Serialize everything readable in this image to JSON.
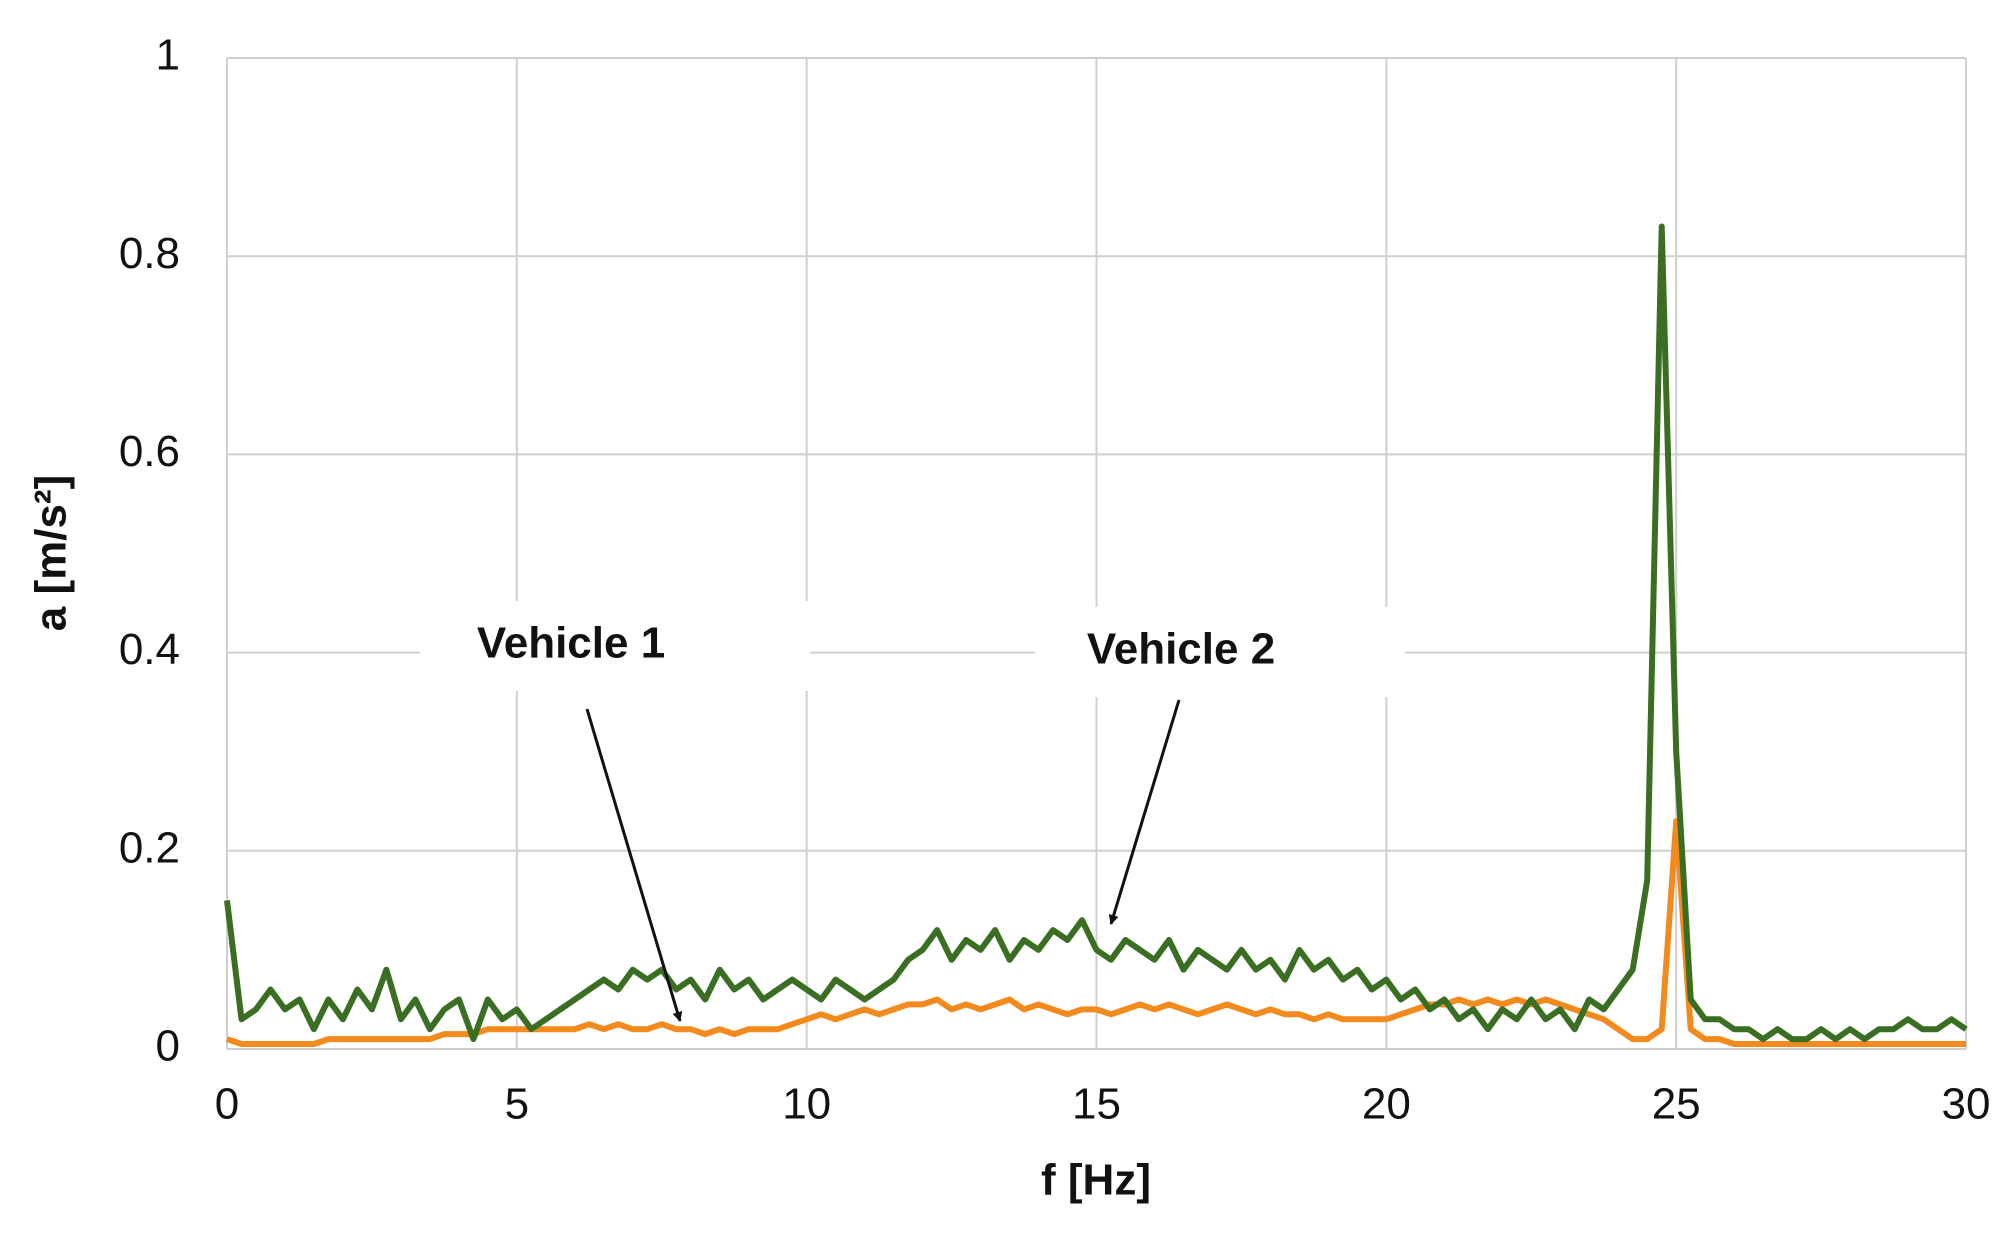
{
  "chart_data": {
    "type": "line",
    "xlabel": "f [Hz]",
    "ylabel": "a [m/s²]",
    "xlim": [
      0,
      30
    ],
    "xticks": [
      0,
      5,
      10,
      15,
      20,
      25,
      30
    ],
    "ylim": [
      0,
      1
    ],
    "yticks": [
      0,
      0.2,
      0.4,
      0.6,
      0.8,
      1
    ],
    "grid": true,
    "x": [
      0,
      0.25,
      0.5,
      0.75,
      1,
      1.25,
      1.5,
      1.75,
      2,
      2.25,
      2.5,
      2.75,
      3,
      3.25,
      3.5,
      3.75,
      4,
      4.25,
      4.5,
      4.75,
      5,
      5.25,
      5.5,
      5.75,
      6,
      6.25,
      6.5,
      6.75,
      7,
      7.25,
      7.5,
      7.75,
      8,
      8.25,
      8.5,
      8.75,
      9,
      9.25,
      9.5,
      9.75,
      10,
      10.25,
      10.5,
      10.75,
      11,
      11.25,
      11.5,
      11.75,
      12,
      12.25,
      12.5,
      12.75,
      13,
      13.25,
      13.5,
      13.75,
      14,
      14.25,
      14.5,
      14.75,
      15,
      15.25,
      15.5,
      15.75,
      16,
      16.25,
      16.5,
      16.75,
      17,
      17.25,
      17.5,
      17.75,
      18,
      18.25,
      18.5,
      18.75,
      19,
      19.25,
      19.5,
      19.75,
      20,
      20.25,
      20.5,
      20.75,
      21,
      21.25,
      21.5,
      21.75,
      22,
      22.25,
      22.5,
      22.75,
      23,
      23.25,
      23.5,
      23.75,
      24,
      24.25,
      24.5,
      24.75,
      25,
      25.25,
      25.5,
      25.75,
      26,
      26.25,
      26.5,
      26.75,
      27,
      27.25,
      27.5,
      27.75,
      28,
      28.25,
      28.5,
      28.75,
      29,
      29.25,
      29.5,
      29.75,
      30
    ],
    "series": [
      {
        "name": "Vehicle 1",
        "color": "#f28a1e",
        "values": [
          0.01,
          0.005,
          0.005,
          0.005,
          0.005,
          0.005,
          0.005,
          0.01,
          0.01,
          0.01,
          0.01,
          0.01,
          0.01,
          0.01,
          0.01,
          0.015,
          0.015,
          0.015,
          0.02,
          0.02,
          0.02,
          0.02,
          0.02,
          0.02,
          0.02,
          0.025,
          0.02,
          0.025,
          0.02,
          0.02,
          0.025,
          0.02,
          0.02,
          0.015,
          0.02,
          0.015,
          0.02,
          0.02,
          0.02,
          0.025,
          0.03,
          0.035,
          0.03,
          0.035,
          0.04,
          0.035,
          0.04,
          0.045,
          0.045,
          0.05,
          0.04,
          0.045,
          0.04,
          0.045,
          0.05,
          0.04,
          0.045,
          0.04,
          0.035,
          0.04,
          0.04,
          0.035,
          0.04,
          0.045,
          0.04,
          0.045,
          0.04,
          0.035,
          0.04,
          0.045,
          0.04,
          0.035,
          0.04,
          0.035,
          0.035,
          0.03,
          0.035,
          0.03,
          0.03,
          0.03,
          0.03,
          0.035,
          0.04,
          0.045,
          0.045,
          0.05,
          0.045,
          0.05,
          0.045,
          0.05,
          0.045,
          0.05,
          0.045,
          0.04,
          0.035,
          0.03,
          0.02,
          0.01,
          0.01,
          0.02,
          0.23,
          0.02,
          0.01,
          0.01,
          0.005,
          0.005,
          0.005,
          0.005,
          0.005,
          0.005,
          0.005,
          0.005,
          0.005,
          0.005,
          0.005,
          0.005,
          0.005,
          0.005,
          0.005,
          0.005,
          0.005
        ]
      },
      {
        "name": "Vehicle 2",
        "color": "#3a6e23",
        "values": [
          0.15,
          0.03,
          0.04,
          0.06,
          0.04,
          0.05,
          0.02,
          0.05,
          0.03,
          0.06,
          0.04,
          0.08,
          0.03,
          0.05,
          0.02,
          0.04,
          0.05,
          0.01,
          0.05,
          0.03,
          0.04,
          0.02,
          0.03,
          0.04,
          0.05,
          0.06,
          0.07,
          0.06,
          0.08,
          0.07,
          0.08,
          0.06,
          0.07,
          0.05,
          0.08,
          0.06,
          0.07,
          0.05,
          0.06,
          0.07,
          0.06,
          0.05,
          0.07,
          0.06,
          0.05,
          0.06,
          0.07,
          0.09,
          0.1,
          0.12,
          0.09,
          0.11,
          0.1,
          0.12,
          0.09,
          0.11,
          0.1,
          0.12,
          0.11,
          0.13,
          0.1,
          0.09,
          0.11,
          0.1,
          0.09,
          0.11,
          0.08,
          0.1,
          0.09,
          0.08,
          0.1,
          0.08,
          0.09,
          0.07,
          0.1,
          0.08,
          0.09,
          0.07,
          0.08,
          0.06,
          0.07,
          0.05,
          0.06,
          0.04,
          0.05,
          0.03,
          0.04,
          0.02,
          0.04,
          0.03,
          0.05,
          0.03,
          0.04,
          0.02,
          0.05,
          0.04,
          0.06,
          0.08,
          0.17,
          0.83,
          0.3,
          0.05,
          0.03,
          0.03,
          0.02,
          0.02,
          0.01,
          0.02,
          0.01,
          0.01,
          0.02,
          0.01,
          0.02,
          0.01,
          0.02,
          0.02,
          0.03,
          0.02,
          0.02,
          0.03,
          0.02
        ]
      }
    ]
  }
}
